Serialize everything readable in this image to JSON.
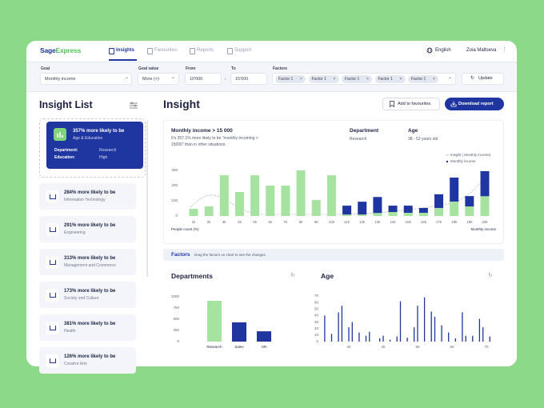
{
  "nav": {
    "logo_a": "Sage",
    "logo_b": "Express",
    "tabs": [
      "Insights",
      "Favourites",
      "Reports",
      "Support"
    ],
    "language": "English",
    "user": "Zoia Maltseva"
  },
  "filters": {
    "goal_label": "Goal",
    "goal": "Monthly income",
    "goal_value_label": "Goal value",
    "goal_value": "More (>)",
    "from_label": "From",
    "from": "10'000",
    "separator": ",",
    "to_label": "To",
    "to": "15'000",
    "factors_label": "Factors",
    "factors": [
      "Factor 1",
      "Factor 1",
      "Factor 1",
      "Factor 1",
      "Factor 1"
    ],
    "update": "Update"
  },
  "sidebar": {
    "title": "Insight List",
    "selected": {
      "headline": "357% more likely to be",
      "subtitle": "Age & Education",
      "rows": [
        [
          "Department:",
          "Research"
        ],
        [
          "Education:",
          "High"
        ]
      ]
    },
    "items": [
      {
        "headline": "284% more likely to be",
        "subtitle": "Information Technology"
      },
      {
        "headline": "291% more likely to be",
        "subtitle": "Engineering"
      },
      {
        "headline": "313% more likely to be",
        "subtitle": "Management and Commerce"
      },
      {
        "headline": "173% more likely to be",
        "subtitle": "Society and Culture"
      },
      {
        "headline": "381% more likely to be",
        "subtitle": "Health"
      },
      {
        "headline": "126% more likely to be",
        "subtitle": "Creative Arts"
      }
    ]
  },
  "insight": {
    "title": "Insight",
    "favourite": "Add to favourites",
    "download": "Download report",
    "summary": {
      "title": "Monthly income > 15 000",
      "text": "It's 357.1% more likely to be \"monthly incoming > 15000\" than in other situations.",
      "department_label": "Department",
      "department": "Research",
      "age_label": "Age",
      "age": "38 - 53 years old"
    }
  },
  "insight_chart": {
    "type": "stacked-bar",
    "categories": [
      "1k",
      "2k",
      "3k",
      "4k",
      "5k",
      "6k",
      "7k",
      "8k",
      "9k",
      "10k",
      "11k",
      "12k",
      "13k",
      "14k",
      "15k",
      "16k",
      "17k",
      "18k",
      "19k",
      "20k"
    ],
    "series": [
      {
        "name": "Insight ( Monthly income)",
        "color": "#a6e3a0",
        "values": [
          47,
          63,
          268,
          158,
          268,
          200,
          200,
          300,
          105,
          268,
          10,
          10,
          20,
          26,
          21,
          21,
          53,
          95,
          63,
          130
        ]
      },
      {
        "name": "Monthly income",
        "color": "#1f35a0",
        "values": [
          null,
          null,
          null,
          null,
          null,
          null,
          null,
          null,
          null,
          null,
          58,
          84,
          105,
          42,
          47,
          32,
          90,
          158,
          68,
          165
        ]
      }
    ],
    "ylim": [
      0,
      300
    ],
    "yticks": [
      0,
      100,
      200,
      300
    ],
    "x_label": "People count (%)",
    "x_label_right": "Monthly income"
  },
  "factors": {
    "title": "Factors",
    "hint": "Drag the factors on chart to see the changes"
  },
  "departments_chart": {
    "type": "bar",
    "title": "Departments",
    "categories": [
      "Research",
      "Sales",
      "HR"
    ],
    "values": [
      910,
      430,
      230
    ],
    "colors": [
      "#a6e3a0",
      "#1f35a0",
      "#1f35a0"
    ],
    "ylim": [
      0,
      1000
    ],
    "yticks": [
      0,
      250,
      500,
      750,
      1000
    ]
  },
  "age_chart": {
    "type": "stem",
    "title": "Age",
    "color": "#1f35a0",
    "x": [
      23,
      25,
      27,
      28,
      30,
      31,
      33,
      35,
      36,
      39,
      40,
      42,
      44,
      45,
      47,
      49,
      50,
      52,
      54,
      55,
      57,
      59,
      61,
      63,
      64,
      66,
      68,
      69,
      71
    ],
    "values": [
      40,
      12,
      45,
      55,
      22,
      30,
      14,
      9,
      15,
      5,
      9,
      3,
      8,
      62,
      6,
      22,
      55,
      68,
      46,
      38,
      25,
      14,
      5,
      45,
      9,
      9,
      35,
      22,
      8
    ],
    "xlim": [
      22,
      72
    ],
    "ylim": [
      0,
      70
    ],
    "xticks": [
      30,
      40,
      50,
      60,
      70
    ],
    "yticks": [
      0,
      10,
      20,
      30,
      40,
      50,
      60,
      70
    ]
  }
}
